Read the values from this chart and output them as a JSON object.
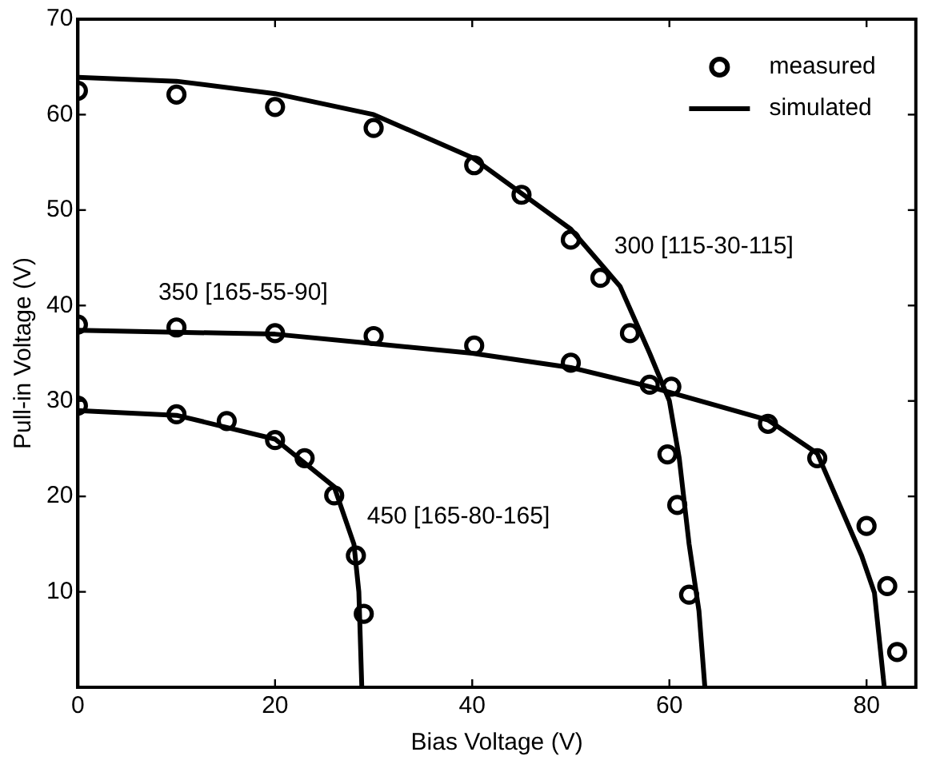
{
  "chart_data": {
    "type": "line",
    "xlabel": "Bias Voltage (V)",
    "ylabel": "Pull-in Voltage (V)",
    "xlim": [
      0,
      85
    ],
    "xticks": [
      0,
      20,
      40,
      60,
      80
    ],
    "ylim": [
      0,
      70
    ],
    "yticks": [
      10,
      20,
      30,
      40,
      50,
      60,
      70
    ],
    "grid": false,
    "legend": "top right",
    "line_style": "solid",
    "series": [
      {
        "name": "measured",
        "type": "scatter",
        "marker": "circle",
        "color": "#000000",
        "x": [
          0,
          10,
          20,
          30,
          40.2,
          45,
          50,
          53,
          56,
          58,
          59.8,
          60.8,
          62
        ],
        "values": [
          62.5,
          62.1,
          60.8,
          58.6,
          54.7,
          51.6,
          46.9,
          42.9,
          37.1,
          31.7,
          24.4,
          19.1,
          9.7
        ]
      },
      {
        "name": "simulated",
        "marker": "none",
        "color": "#000000",
        "x": [
          0,
          10,
          20,
          30,
          40,
          50,
          55,
          58,
          60,
          61,
          62,
          63,
          63.6
        ],
        "values": [
          63.9,
          63.5,
          62.2,
          60,
          55.5,
          48,
          42,
          35,
          30,
          24,
          15,
          8,
          0
        ]
      },
      {
        "type": "scatter",
        "marker": "circle",
        "color": "#000000",
        "x": [
          0,
          10,
          20,
          30,
          40.2,
          50,
          60.2,
          70,
          75,
          80,
          82.1,
          83.1
        ],
        "values": [
          38,
          37.7,
          37.1,
          36.8,
          35.8,
          34,
          31.5,
          27.6,
          24,
          16.9,
          10.6,
          3.7
        ]
      },
      {
        "marker": "none",
        "color": "#000000",
        "x": [
          0,
          20,
          30,
          40,
          50,
          58,
          70,
          75,
          79.5,
          80.8,
          81.8
        ],
        "values": [
          37.4,
          37,
          36,
          35,
          33.5,
          31.5,
          28,
          24.5,
          13.8,
          9.9,
          0
        ]
      },
      {
        "type": "scatter",
        "marker": "circle",
        "color": "#000000",
        "x": [
          0,
          10,
          15.1,
          20,
          23,
          26,
          28.2,
          29
        ],
        "values": [
          29.5,
          28.6,
          27.9,
          25.9,
          24,
          20.1,
          13.8,
          7.7
        ]
      },
      {
        "marker": "none",
        "color": "#000000",
        "x": [
          0,
          10,
          20,
          26,
          28,
          28.5,
          28.8
        ],
        "values": [
          29,
          28.5,
          26,
          21,
          15,
          10,
          0
        ]
      }
    ],
    "annotations": [
      "300 [115-30-115]",
      "350 [165-55-90]",
      "450 [165-80-165]"
    ]
  }
}
